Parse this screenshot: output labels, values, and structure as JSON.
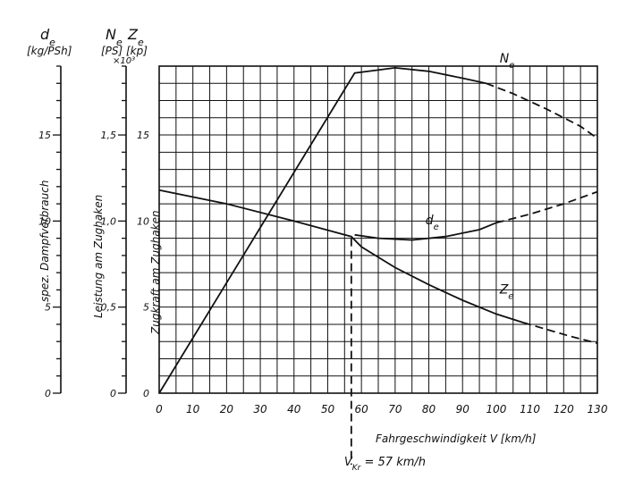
{
  "chart_data": {
    "type": "line",
    "x": {
      "label": "Fahrgeschwindigkeit V [km/h]",
      "ticks": [
        "0",
        "10",
        "20",
        "30",
        "40",
        "50",
        "60",
        "70",
        "80",
        "90",
        "100",
        "110",
        "120",
        "130"
      ],
      "range": [
        0,
        130
      ]
    },
    "axes": [
      {
        "symbol": "d",
        "sub": "e",
        "unit": "[kg/PSh]",
        "name": "spez. Dampfverbrauch",
        "ticks": [
          "0",
          "5",
          "10",
          "15"
        ],
        "range": [
          0,
          19
        ]
      },
      {
        "symbol": "N",
        "sub": "e",
        "unit": "[PS]",
        "name": "Leistung am Zughaken",
        "ticks": [
          "0",
          "0,5",
          "1,0",
          "1,5"
        ],
        "range": [
          0,
          1.9
        ],
        "multiplier": "×10³"
      },
      {
        "symbol": "Z",
        "sub": "e",
        "unit": "[kp]",
        "name": "Zugkraft am Zughaken",
        "ticks": [
          "0",
          "5",
          "10",
          "15"
        ],
        "range": [
          0,
          19
        ]
      }
    ],
    "series": [
      {
        "name": "N",
        "sub": "e",
        "solid": [
          [
            0,
            0
          ],
          [
            58,
            1.86
          ],
          [
            70,
            1.89
          ],
          [
            80,
            1.87
          ],
          [
            90,
            1.83
          ],
          [
            97,
            1.8
          ]
        ],
        "dashed": [
          [
            97,
            1.8
          ],
          [
            105,
            1.74
          ],
          [
            115,
            1.65
          ],
          [
            125,
            1.55
          ],
          [
            130,
            1.48
          ]
        ]
      },
      {
        "name": "d",
        "sub": "e",
        "solid": [
          [
            58,
            9.2
          ],
          [
            65,
            9.0
          ],
          [
            75,
            8.9
          ],
          [
            85,
            9.1
          ],
          [
            95,
            9.5
          ],
          [
            100,
            9.9
          ]
        ],
        "dashed": [
          [
            100,
            9.9
          ],
          [
            110,
            10.4
          ],
          [
            120,
            11.0
          ],
          [
            130,
            11.7
          ]
        ]
      },
      {
        "name": "Z",
        "sub": "e",
        "solid": [
          [
            0,
            11.8
          ],
          [
            20,
            11.0
          ],
          [
            40,
            10.0
          ],
          [
            57,
            9.1
          ],
          [
            60,
            8.5
          ],
          [
            70,
            7.3
          ],
          [
            80,
            6.3
          ],
          [
            90,
            5.4
          ],
          [
            100,
            4.6
          ],
          [
            108,
            4.1
          ]
        ],
        "dashed": [
          [
            108,
            4.1
          ],
          [
            115,
            3.7
          ],
          [
            122,
            3.3
          ],
          [
            130,
            2.9
          ]
        ]
      }
    ],
    "annotation": {
      "label": "V",
      "sub": "Kr",
      "text": "= 57 km/h",
      "x": 57
    },
    "grid": true
  }
}
